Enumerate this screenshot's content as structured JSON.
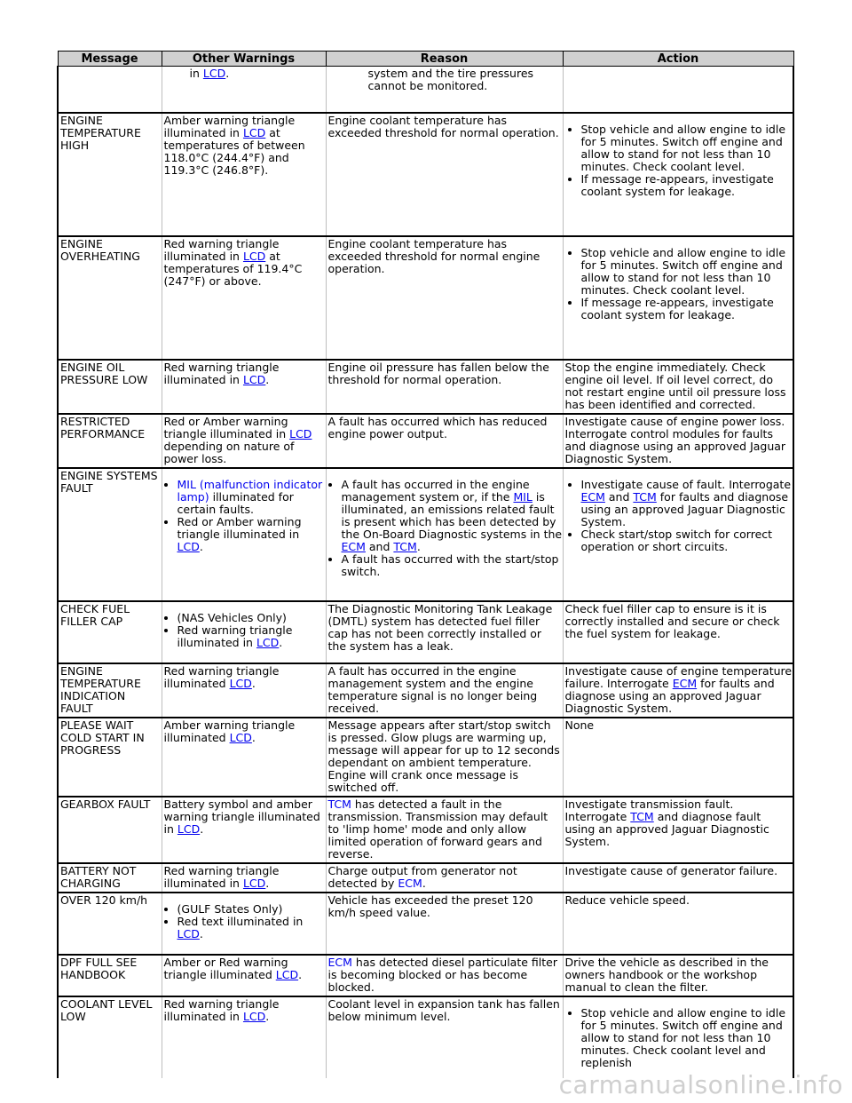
{
  "headers": {
    "message": "Message",
    "other": "Other Warnings",
    "reason": "Reason",
    "action": "Action"
  },
  "links": {
    "lcd": "LCD",
    "ecm": "ECM",
    "tcm": "TCM",
    "mil": "MIL"
  },
  "rows": {
    "r0": {
      "o1": "in ",
      "o2": ".",
      "reason": "system and the tire pressures cannot be monitored."
    },
    "r1": {
      "message": "ENGINE TEMPERATURE HIGH",
      "o1": "Amber warning triangle illuminated in ",
      "o2": " at temperatures of between 118.0°C (244.4°F) and 119.3°C (246.8°F).",
      "reason": "Engine coolant temperature has exceeded threshold for normal operation.",
      "a1": "Stop vehicle and allow engine to idle for 5 minutes. Switch off engine and allow to stand for not less than 10 minutes. Check coolant level.",
      "a2": "If message re-appears, investigate coolant system for leakage."
    },
    "r2": {
      "message": "ENGINE OVERHEATING",
      "o1": "Red warning triangle illuminated in ",
      "o2": " at temperatures of 119.4°C (247°F) or above.",
      "reason": "Engine coolant temperature has exceeded threshold for normal engine operation.",
      "a1": "Stop vehicle and allow engine to idle for 5 minutes. Switch off engine and allow to stand for not less than 10 minutes. Check coolant level.",
      "a2": "If message re-appears, investigate coolant system for leakage."
    },
    "r3": {
      "message": "ENGINE OIL PRESSURE LOW",
      "o1": "Red warning triangle illuminated in ",
      "o2": ".",
      "reason": "Engine oil pressure has fallen below the threshold for normal operation.",
      "action": "Stop the engine immediately. Check engine oil level. If oil level correct, do not restart engine until oil pressure loss has been identified and corrected."
    },
    "r4": {
      "message": "RESTRICTED PERFORMANCE",
      "o1": "Red or Amber warning triangle illuminated in ",
      "o2": " depending on nature of power loss.",
      "reason": "A fault has occurred which has reduced engine power output.",
      "action": "Investigate cause of engine power loss. Interrogate control modules for faults and diagnose using an approved Jaguar Diagnostic System."
    },
    "r5": {
      "message": "ENGINE SYSTEMS FAULT",
      "o_li1": "MIL (malfunction indicator lamp)",
      "o_li1b": " illuminated for certain faults.",
      "o_li2": "Red or Amber warning triangle illuminated in ",
      "o_li2b": ".",
      "r_li1a": "A fault has occurred in the engine management system or, if the ",
      "r_li1b": " is illuminated, an emissions related fault is present which has been detected by the On-Board Diagnostic systems in the ",
      "r_li1c": " and ",
      "r_li1d": ".",
      "r_li2": "A fault has occurred with the start/stop switch.",
      "a_li1a": "Investigate cause of fault. Interrogate ",
      "a_li1b": " and ",
      "a_li1c": " for faults and diagnose using an approved Jaguar Diagnostic System.",
      "a_li2": "Check start/stop switch for correct operation or short circuits."
    },
    "r6": {
      "message": "CHECK FUEL FILLER CAP",
      "o_li1": "(NAS Vehicles Only)",
      "o_li2": "Red warning triangle illuminated in ",
      "o_li2b": ".",
      "reason": "The Diagnostic Monitoring Tank Leakage (DMTL) system has detected fuel filler cap has not been correctly installed or the system has a leak.",
      "action": "Check fuel filler cap to ensure is it is correctly installed and secure or check the fuel system for leakage."
    },
    "r7": {
      "message": "ENGINE TEMPERATURE INDICATION FAULT",
      "o1": "Red warning triangle illuminated ",
      "o2": ".",
      "reason": "A fault has occurred in the engine management system and the engine temperature signal is no longer being received.",
      "a1": "Investigate cause of engine temperature failure. Interrogate ",
      "a2": " for faults and diagnose using an approved Jaguar Diagnostic System."
    },
    "r8": {
      "message": "PLEASE WAIT COLD START IN PROGRESS",
      "o1": "Amber warning triangle illuminated ",
      "o2": ".",
      "reason": "Message appears after start/stop switch is pressed. Glow plugs are warming up, message will appear for up to 12 seconds dependant on ambient temperature. Engine will crank once message is switched off.",
      "action": "None"
    },
    "r9": {
      "message": "GEARBOX FAULT",
      "o1": "Battery symbol and amber warning triangle illuminated in ",
      "o2": ".",
      "r1": " has detected a fault in the transmission. Transmission may default to 'limp home' mode and only allow limited operation of forward gears and reverse.",
      "a1": "Investigate transmission fault. Interrogate ",
      "a2": " and diagnose fault using an approved Jaguar Diagnostic System."
    },
    "r10": {
      "message": "BATTERY NOT CHARGING",
      "o1": "Red warning triangle illuminated in ",
      "o2": ".",
      "r1": "Charge output from generator not detected by ",
      "r2": ".",
      "action": "Investigate cause of generator failure."
    },
    "r11": {
      "message": "OVER 120 km/h",
      "o_li1": "(GULF States Only)",
      "o_li2": "Red text illuminated in ",
      "o_li2b": ".",
      "reason": "Vehicle has exceeded the preset 120 km/h speed value.",
      "action": "Reduce vehicle speed."
    },
    "r12": {
      "message": "DPF FULL SEE HANDBOOK",
      "o1": "Amber or Red warning triangle illuminated ",
      "o2": ".",
      "r1": " has detected diesel particulate filter is becoming blocked or has become blocked.",
      "action": "Drive the vehicle as described in the owners handbook or the workshop manual to clean the filter."
    },
    "r13": {
      "message": "COOLANT LEVEL LOW",
      "o1": "Red warning triangle illuminated in ",
      "o2": ".",
      "reason": "Coolant level in expansion tank has fallen below minimum level.",
      "a1": "Stop vehicle and allow engine to idle for 5 minutes. Switch off engine and allow to stand for not less than 10 minutes. Check coolant level and replenish"
    }
  },
  "watermark": "carmanualsonline.info"
}
